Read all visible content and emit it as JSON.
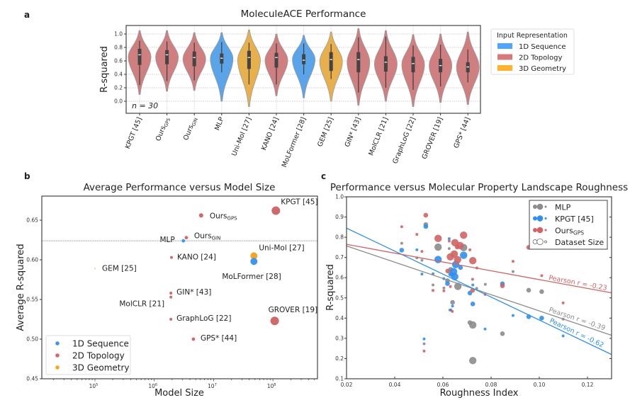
{
  "colors": {
    "1D Sequence": "#3d97f0",
    "2D Topology": "#d06a6a",
    "3D Geometry": "#f5a623",
    "MLP": "#8c8c8c",
    "KPGT": "#2e8ff0",
    "Ours": "#d06464"
  },
  "chart_data": [
    {
      "panel": "a",
      "type": "violin",
      "title": "MoleculeACE Performance",
      "ylabel": "R-squared",
      "yticks": [
        "0.0",
        "0.2",
        "0.4",
        "0.6",
        "0.8",
        "1.0"
      ],
      "ylim": [
        -0.18,
        1.12
      ],
      "grid": true,
      "annotation": "n = 30",
      "legend": {
        "title": "Input Representation",
        "placement": "outside-right",
        "entries": [
          "1D Sequence",
          "2D Topology",
          "3D Geometry"
        ]
      },
      "violins": [
        {
          "label": "KPGT [45]",
          "sub": "",
          "group": "2D Topology",
          "median": 0.69,
          "q1": 0.54,
          "q3": 0.78,
          "whisker": [
            0.24,
            0.9
          ],
          "range": [
            0.1,
            1.05
          ]
        },
        {
          "label": "Ours",
          "sub": "GPS",
          "group": "2D Topology",
          "median": 0.69,
          "q1": 0.55,
          "q3": 0.76,
          "whisker": [
            0.3,
            0.89
          ],
          "range": [
            0.15,
            1.05
          ]
        },
        {
          "label": "Ours",
          "sub": "GIN",
          "group": "2D Topology",
          "median": 0.65,
          "q1": 0.52,
          "q3": 0.74,
          "whisker": [
            0.31,
            0.87
          ],
          "range": [
            0.16,
            1.02
          ]
        },
        {
          "label": "MLP",
          "sub": "",
          "group": "1D Sequence",
          "median": 0.64,
          "q1": 0.56,
          "q3": 0.71,
          "whisker": [
            0.43,
            0.88
          ],
          "range": [
            0.0,
            1.02
          ]
        },
        {
          "label": "Uni-Mol [27]",
          "sub": "",
          "group": "3D Geometry",
          "median": 0.65,
          "q1": 0.48,
          "q3": 0.75,
          "whisker": [
            0.25,
            0.87
          ],
          "range": [
            -0.08,
            1.06
          ]
        },
        {
          "label": "KANO [24]",
          "sub": "",
          "group": "2D Topology",
          "median": 0.65,
          "q1": 0.5,
          "q3": 0.72,
          "whisker": [
            0.25,
            0.86
          ],
          "range": [
            0.08,
            1.0
          ]
        },
        {
          "label": "MoLFormer [28]",
          "sub": "",
          "group": "1D Sequence",
          "median": 0.61,
          "q1": 0.55,
          "q3": 0.7,
          "whisker": [
            0.4,
            0.86
          ],
          "range": [
            0.05,
            0.98
          ]
        },
        {
          "label": "GEM [25]",
          "sub": "",
          "group": "3D Geometry",
          "median": 0.62,
          "q1": 0.45,
          "q3": 0.73,
          "whisker": [
            0.33,
            0.85
          ],
          "range": [
            0.0,
            1.03
          ]
        },
        {
          "label": "GIN* [43]",
          "sub": "",
          "group": "2D Topology",
          "median": 0.62,
          "q1": 0.43,
          "q3": 0.73,
          "whisker": [
            0.13,
            0.95
          ],
          "range": [
            -0.06,
            1.08
          ]
        },
        {
          "label": "MolCLR [21]",
          "sub": "",
          "group": "2D Topology",
          "median": 0.58,
          "q1": 0.44,
          "q3": 0.67,
          "whisker": [
            0.2,
            0.96
          ],
          "range": [
            0.0,
            1.05
          ]
        },
        {
          "label": "GraphLoG [22]",
          "sub": "",
          "group": "2D Topology",
          "median": 0.56,
          "q1": 0.43,
          "q3": 0.66,
          "whisker": [
            0.17,
            0.83
          ],
          "range": [
            -0.08,
            0.99
          ]
        },
        {
          "label": "GROVER [19]",
          "sub": "",
          "group": "2D Topology",
          "median": 0.53,
          "q1": 0.43,
          "q3": 0.63,
          "whisker": [
            0.22,
            0.84
          ],
          "range": [
            -0.02,
            1.0
          ]
        },
        {
          "label": "GPS* [44]",
          "sub": "",
          "group": "2D Topology",
          "median": 0.51,
          "q1": 0.43,
          "q3": 0.58,
          "whisker": [
            0.28,
            0.77
          ],
          "range": [
            -0.05,
            1.03
          ]
        }
      ]
    },
    {
      "panel": "b",
      "type": "scatter",
      "title": "Average Performance versus Model Size",
      "xlabel": "Model Size",
      "ylabel": "Average R-squared",
      "xscale": "log",
      "xlim_log10": [
        4.1,
        8.75
      ],
      "ylim": [
        0.45,
        0.68
      ],
      "xticks": [
        "10^5",
        "10^6",
        "10^7",
        "10^8"
      ],
      "yticks": [
        "0.45",
        "0.50",
        "0.55",
        "0.60",
        "0.65"
      ],
      "reference_line": {
        "style": "dotted",
        "y": 0.624
      },
      "legend": {
        "placement": "bottom-left",
        "entries": [
          "1D Sequence",
          "2D Topology",
          "3D Geometry"
        ]
      },
      "points": [
        {
          "label": "KPGT [45]",
          "sub": "",
          "group": "2D Topology",
          "log10_size": 8.05,
          "r2": 0.662,
          "marker": 3
        },
        {
          "label": "Ours",
          "sub": "GPS",
          "group": "2D Topology",
          "log10_size": 6.79,
          "r2": 0.656,
          "marker": 1.5
        },
        {
          "label": "Ours",
          "sub": "GIN",
          "group": "2D Topology",
          "log10_size": 6.54,
          "r2": 0.628,
          "marker": 1.2
        },
        {
          "label": "MLP",
          "sub": "",
          "group": "1D Sequence",
          "log10_size": 6.49,
          "r2": 0.624,
          "marker": 1.2
        },
        {
          "label": "KANO [24]",
          "sub": "",
          "group": "2D Topology",
          "log10_size": 6.29,
          "r2": 0.603,
          "marker": 1
        },
        {
          "label": "Uni-Mol [27]",
          "sub": "",
          "group": "3D Geometry",
          "log10_size": 7.68,
          "r2": 0.605,
          "marker": 2.5
        },
        {
          "label": "MoLFormer [28]",
          "sub": "",
          "group": "1D Sequence",
          "log10_size": 7.68,
          "r2": 0.598,
          "marker": 2.5
        },
        {
          "label": "GEM [25]",
          "sub": "",
          "group": "3D Geometry",
          "log10_size": 5.0,
          "r2": 0.589,
          "marker": 0.4
        },
        {
          "label": "GIN* [43]",
          "sub": "",
          "group": "2D Topology",
          "log10_size": 6.28,
          "r2": 0.558,
          "marker": 1
        },
        {
          "label": "MolCLR [21]",
          "sub": "",
          "group": "2D Topology",
          "log10_size": 6.28,
          "r2": 0.553,
          "marker": 1
        },
        {
          "label": "GraphLoG [22]",
          "sub": "",
          "group": "2D Topology",
          "log10_size": 6.28,
          "r2": 0.525,
          "marker": 1
        },
        {
          "label": "GROVER [19]",
          "sub": "",
          "group": "2D Topology",
          "log10_size": 8.03,
          "r2": 0.523,
          "marker": 3
        },
        {
          "label": "GPS* [44]",
          "sub": "",
          "group": "2D Topology",
          "log10_size": 6.66,
          "r2": 0.5,
          "marker": 1.2
        }
      ]
    },
    {
      "panel": "c",
      "type": "scatter",
      "title": "Performance versus Molecular Property Landscape Roughness",
      "xlabel": "Roughness Index",
      "ylabel": "R-squared",
      "xlim": [
        0.02,
        0.13
      ],
      "ylim": [
        0.1,
        1.0
      ],
      "xticks": [
        "0.02",
        "0.04",
        "0.06",
        "0.08",
        "0.10",
        "0.12"
      ],
      "yticks": [
        "0.1",
        "0.2",
        "0.3",
        "0.4",
        "0.5",
        "0.6",
        "0.7",
        "0.8",
        "0.9",
        "1.0"
      ],
      "legend": {
        "placement": "top-right",
        "entries": [
          {
            "name": "MLP",
            "sub": ""
          },
          {
            "name": "KPGT [45]",
            "sub": ""
          },
          {
            "name": "Ours",
            "sub": "GPS"
          },
          {
            "name": "Dataset Size",
            "sub": ""
          }
        ]
      },
      "series": [
        {
          "name": "MLP",
          "color_key": "MLP",
          "fit": {
            "y_at_xmin": 0.757,
            "y_at_xmax": 0.315,
            "label": "Pearson r = -0.39"
          },
          "points": [
            [
              0.0429,
              0.77,
              1
            ],
            [
              0.0529,
              0.863,
              2
            ],
            [
              0.0492,
              0.698,
              1
            ],
            [
              0.0513,
              0.686,
              1
            ],
            [
              0.058,
              0.751,
              3
            ],
            [
              0.0626,
              0.744,
              1
            ],
            [
              0.0686,
              0.749,
              3
            ],
            [
              0.0559,
              0.564,
              1
            ],
            [
              0.0604,
              0.549,
              1
            ],
            [
              0.0619,
              0.585,
              2
            ],
            [
              0.0632,
              0.641,
              2
            ],
            [
              0.0639,
              0.614,
              2
            ],
            [
              0.0662,
              0.557,
              3
            ],
            [
              0.0712,
              0.378,
              2
            ],
            [
              0.0724,
              0.366,
              3
            ],
            [
              0.0724,
              0.19,
              3
            ],
            [
              0.074,
              0.547,
              1
            ],
            [
              0.0776,
              0.567,
              1
            ],
            [
              0.0847,
              0.323,
              2
            ],
            [
              0.0891,
              0.63,
              1
            ],
            [
              0.0956,
              0.538,
              2
            ],
            [
              0.101,
              0.531,
              2
            ],
            [
              0.1099,
              0.395,
              1
            ],
            [
              0.0522,
              0.273,
              1
            ],
            [
              0.064,
              0.478,
              2
            ],
            [
              0.0629,
              0.44,
              1
            ]
          ]
        },
        {
          "name": "KPGT [45]",
          "color_key": "KPGT",
          "fit": {
            "y_at_xmin": 0.845,
            "y_at_xmax": 0.22,
            "label": "Pearson r = -0.62"
          },
          "points": [
            [
              0.0429,
              0.736,
              2
            ],
            [
              0.0492,
              0.738,
              1
            ],
            [
              0.0529,
              0.853,
              2
            ],
            [
              0.0626,
              0.793,
              1
            ],
            [
              0.058,
              0.69,
              3
            ],
            [
              0.0686,
              0.711,
              3
            ],
            [
              0.0653,
              0.665,
              3
            ],
            [
              0.0673,
              0.65,
              2
            ],
            [
              0.0644,
              0.63,
              3
            ],
            [
              0.0649,
              0.605,
              3
            ],
            [
              0.0632,
              0.617,
              2
            ],
            [
              0.0513,
              0.618,
              1
            ],
            [
              0.0559,
              0.619,
              1
            ],
            [
              0.0604,
              0.595,
              1
            ],
            [
              0.0619,
              0.571,
              2
            ],
            [
              0.0712,
              0.524,
              2
            ],
            [
              0.0724,
              0.564,
              1
            ],
            [
              0.0724,
              0.47,
              2
            ],
            [
              0.064,
              0.46,
              1
            ],
            [
              0.0633,
              0.44,
              1
            ],
            [
              0.0775,
              0.346,
              1
            ],
            [
              0.0847,
              0.57,
              2
            ],
            [
              0.0891,
              0.413,
              1
            ],
            [
              0.0956,
              0.407,
              2
            ],
            [
              0.101,
              0.4,
              2
            ],
            [
              0.1099,
              0.312,
              1
            ],
            [
              0.0522,
              0.297,
              1
            ]
          ]
        },
        {
          "name": "Ours",
          "sub": "GPS",
          "color_key": "Ours",
          "fit": {
            "y_at_xmin": 0.765,
            "y_at_xmax": 0.525,
            "label": "Pearson r = -0.23"
          },
          "points": [
            [
              0.0429,
              0.852,
              1
            ],
            [
              0.0492,
              0.814,
              1
            ],
            [
              0.0529,
              0.909,
              2
            ],
            [
              0.0513,
              0.73,
              1
            ],
            [
              0.058,
              0.794,
              3
            ],
            [
              0.0626,
              0.781,
              1
            ],
            [
              0.065,
              0.773,
              3
            ],
            [
              0.0671,
              0.759,
              3
            ],
            [
              0.0686,
              0.81,
              3
            ],
            [
              0.0659,
              0.752,
              2
            ],
            [
              0.0647,
              0.717,
              3
            ],
            [
              0.0631,
              0.703,
              3
            ],
            [
              0.0661,
              0.689,
              3
            ],
            [
              0.0712,
              0.738,
              1
            ],
            [
              0.0724,
              0.684,
              3
            ],
            [
              0.0741,
              0.648,
              1
            ],
            [
              0.062,
              0.633,
              2
            ],
            [
              0.0559,
              0.537,
              1
            ],
            [
              0.0604,
              0.535,
              1
            ],
            [
              0.0631,
              0.556,
              1
            ],
            [
              0.0639,
              0.433,
              1
            ],
            [
              0.0723,
              0.592,
              1
            ],
            [
              0.0723,
              0.537,
              2
            ],
            [
              0.0775,
              0.517,
              1
            ],
            [
              0.0847,
              0.56,
              2
            ],
            [
              0.0891,
              0.681,
              1
            ],
            [
              0.0956,
              0.75,
              2
            ],
            [
              0.101,
              0.61,
              1
            ],
            [
              0.1099,
              0.475,
              1
            ],
            [
              0.0522,
              0.237,
              1
            ]
          ]
        }
      ]
    }
  ],
  "panel_labels": [
    "a",
    "b",
    "c"
  ]
}
